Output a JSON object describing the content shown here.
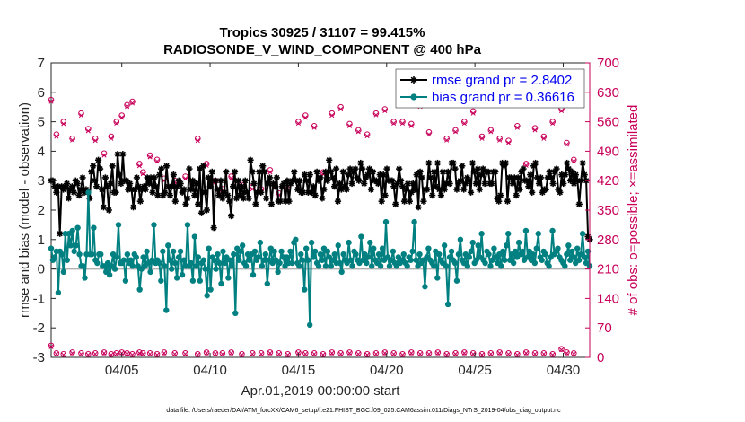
{
  "chart_data": {
    "type": "line",
    "title_line1": "Tropics 30925 / 31107 = 99.415%",
    "title_line2": "RADIOSONDE_V_WIND_COMPONENT @ 400 hPa",
    "ylabel_left": "rmse and bias (model - observation)",
    "ylabel_right": "# of obs: o=possible; ×=assimilated",
    "xlabel": "Apr.01,2019 00:00:00 start",
    "footnote": "data file: /Users/raeder/DAI/ATM_forcXX/CAM6_setup/f.e21.FHIST_BGC.f09_025.CAM6assim.011/Diags_NTrS_2019-04/obs_diag_output.nc",
    "x_range": [
      1,
      31.5
    ],
    "x_ticks": [
      5,
      10,
      15,
      20,
      25,
      30
    ],
    "x_tick_labels": [
      "04/05",
      "04/10",
      "04/15",
      "04/20",
      "04/25",
      "04/30"
    ],
    "ylim_left": [
      -3,
      7
    ],
    "y_ticks_left": [
      "-3",
      "-2",
      "-1",
      "0",
      "1",
      "2",
      "3",
      "4",
      "5",
      "6",
      "7"
    ],
    "ylim_right": [
      0,
      700
    ],
    "y_ticks_right": [
      "0",
      "70",
      "140",
      "210",
      "280",
      "350",
      "420",
      "490",
      "560",
      "630",
      "700"
    ],
    "zero_line": 0,
    "grid": false,
    "legend_position": "top-right",
    "series": [
      {
        "name": "rmse grand pr = 2.8402",
        "color": "#000000",
        "marker": "asterisk",
        "values": [
          3.0,
          3.0,
          2.8,
          2.6,
          2.8,
          1.2,
          2.8,
          2.7,
          2.8,
          2.9,
          2.4,
          2.7,
          2.8,
          2.6,
          3.0,
          2.9,
          2.5,
          2.7,
          3.1,
          2.6,
          2.7,
          2.6,
          2.4,
          3.3,
          3.5,
          3.0,
          2.8,
          3.7,
          3.4,
          2.7,
          2.1,
          3.1,
          2.8,
          2.0,
          2.9,
          3.5,
          2.6,
          2.6,
          3.9,
          3.2,
          2.9,
          3.9,
          3.0,
          3.0,
          2.7,
          2.9,
          2.7,
          2.1,
          2.7,
          3.1,
          2.8,
          2.3,
          2.7,
          2.8,
          2.7,
          3.1,
          2.9,
          3.1,
          2.6,
          3.1,
          2.8,
          2.5,
          3.2,
          3.4,
          2.5,
          2.6,
          3.5,
          2.8,
          2.5,
          2.8,
          3.2,
          2.3,
          2.8,
          3.0,
          2.9,
          2.6,
          2.7,
          2.2,
          2.4,
          3.4,
          2.7,
          3.0,
          2.5,
          2.9,
          2.2,
          3.4,
          1.9,
          3.5,
          2.6,
          2.0,
          3.1,
          2.8,
          3.3,
          1.4,
          3.0,
          2.7,
          2.5,
          3.0,
          2.4,
          2.6,
          3.3,
          2.5,
          2.3,
          1.8,
          2.8,
          3.3,
          2.4,
          3.0,
          2.5,
          2.8,
          2.4,
          3.0,
          2.6,
          2.4,
          3.7,
          3.3,
          2.9,
          2.2,
          2.6,
          3.3,
          2.6,
          3.5,
          3.3,
          2.4,
          2.9,
          3.1,
          2.2,
          2.9,
          2.8,
          3.1,
          2.3,
          2.3,
          2.8,
          2.9,
          2.3,
          3.0,
          2.3,
          2.9,
          3.0,
          3.3,
          3.0,
          2.7,
          3.0,
          2.6,
          2.6,
          3.2,
          3.0,
          2.6,
          3.2,
          2.6,
          2.8,
          2.5,
          3.3,
          3.0,
          3.1,
          2.4,
          2.7,
          3.3,
          3.0,
          3.7,
          3.3,
          3.1,
          2.8,
          3.4,
          2.3,
          2.9,
          2.7,
          3.3,
          2.8,
          2.7,
          3.2,
          3.4,
          2.9,
          3.3,
          3.4,
          3.1,
          3.0,
          3.6,
          3.4,
          2.9,
          3.1,
          3.2,
          3.4,
          2.7,
          3.3,
          3.0,
          3.0,
          2.9,
          3.2,
          2.3,
          3.2,
          2.5,
          3.4,
          3.0,
          3.0,
          3.0,
          2.8,
          2.2,
          2.9,
          3.4,
          3.0,
          2.8,
          2.3,
          2.7,
          2.9,
          2.3,
          2.6,
          2.9,
          2.7,
          3.2,
          2.1,
          3.3,
          3.1,
          2.3,
          2.7,
          2.7,
          3.6,
          3.1,
          2.5,
          3.3,
          2.8,
          3.6,
          2.7,
          2.5,
          3.3,
          2.7,
          2.9,
          3.3,
          2.9,
          3.6,
          3.6,
          3.4,
          2.7,
          2.9,
          3.0,
          3.5,
          2.7,
          2.9,
          3.1,
          3.0,
          2.6,
          3.6,
          3.3,
          2.9,
          3.4,
          2.7,
          3.2,
          3.4,
          2.9,
          3.3,
          3.3,
          2.9,
          2.9,
          3.3,
          3.3,
          2.4,
          2.3,
          2.5,
          3.6,
          3.5,
          3.6,
          2.3,
          3.1,
          3.1,
          2.9,
          3.1,
          2.5,
          3.1,
          2.7,
          3.3,
          3.4,
          3.0,
          3.0,
          2.8,
          3.2,
          2.6,
          3.5,
          3.6,
          3.1,
          2.9,
          3.1,
          2.6,
          2.7,
          2.7,
          3.1,
          3.3,
          3.1,
          2.9,
          3.3,
          3.4,
          2.7,
          2.6,
          3.2,
          2.9,
          3.2,
          3.6,
          3.4,
          3.0,
          3.3,
          2.9,
          3.2,
          3.0,
          2.2,
          3.0,
          3.6,
          3.2,
          3.0,
          1.1,
          1.0
        ]
      },
      {
        "name": "bias grand pr = 0.36616",
        "color": "#008080",
        "marker": "circle",
        "values": [
          0.7,
          0.3,
          0.4,
          0.6,
          -0.8,
          0.6,
          0.5,
          -0.1,
          1.2,
          0.3,
          1.2,
          0.8,
          1.3,
          0.6,
          0.8,
          1.4,
          0.5,
          0.1,
          0.1,
          -0.3,
          0.5,
          2.6,
          0.5,
          0.5,
          1.4,
          0.3,
          0.2,
          0.5,
          0.5,
          0.1,
          0.1,
          -0.1,
          0.2,
          -0.2,
          0.1,
          0.5,
          0.0,
          0.4,
          1.5,
          0.2,
          0.2,
          0.3,
          -0.4,
          0.5,
          0.2,
          0.3,
          0.1,
          0.5,
          0.4,
          0.1,
          -0.7,
          0.0,
          0.4,
          0.1,
          0.6,
          0.2,
          -0.1,
          0.3,
          1.5,
          0.2,
          0.3,
          0.2,
          -0.4,
          0.6,
          0.1,
          -1.4,
          0.8,
          0.3,
          0.0,
          0.6,
          0.2,
          -0.3,
          0.4,
          0.6,
          -0.2,
          0.3,
          0.1,
          1.5,
          0.1,
          0.2,
          -0.4,
          1.1,
          0.1,
          0.4,
          -0.4,
          0.2,
          0.3,
          0.0,
          -0.9,
          0.7,
          -0.7,
          0.4,
          0.3,
          0.0,
          0.5,
          0.2,
          -0.5,
          0.6,
          0.2,
          0.4,
          -0.3,
          0.3,
          0.1,
          0.5,
          -1.5,
          0.7,
          0.3,
          0.6,
          0.8,
          0.2,
          0.1,
          0.5,
          0.3,
          0.5,
          -0.2,
          0.6,
          0.3,
          0.4,
          0.9,
          0.1,
          0.3,
          0.5,
          -0.5,
          0.3,
          0.7,
          0.2,
          0.6,
          0.3,
          -0.1,
          0.2,
          0.6,
          0.4,
          0.1,
          0.4,
          0.2,
          0.6,
          0.2,
          0.9,
          1.0,
          0.2,
          0.1,
          0.5,
          0.3,
          -0.7,
          0.7,
          0.3,
          -1.9,
          0.9,
          0.4,
          0.6,
          0.2,
          0.1,
          0.5,
          0.3,
          0.7,
          0.1,
          0.6,
          0.4,
          0.1,
          0.3,
          0.5,
          0.2,
          0.8,
          0.2,
          -0.1,
          0.5,
          0.3,
          0.2,
          0.9,
          0.3,
          0.1,
          0.6,
          0.5,
          0.3,
          0.2,
          1.1,
          0.3,
          0.5,
          0.2,
          0.4,
          0.9,
          0.1,
          0.7,
          0.3,
          0.2,
          0.5,
          0.1,
          0.7,
          0.3,
          1.6,
          0.4,
          0.1,
          0.3,
          0.6,
          0.2,
          0.1,
          0.4,
          0.2,
          0.3,
          0.5,
          0.2,
          0.1,
          0.4,
          0.3,
          0.6,
          1.6,
          0.3,
          0.1,
          0.5,
          0.2,
          0.3,
          -0.6,
          0.4,
          0.7,
          0.3,
          0.2,
          0.1,
          0.6,
          -0.3,
          0.5,
          0.3,
          0.2,
          0.8,
          0.1,
          -1.2,
          0.4,
          0.6,
          0.3,
          0.2,
          -0.4,
          0.5,
          1.0,
          0.3,
          0.2,
          0.5,
          0.1,
          0.4,
          0.6,
          0.9,
          0.2,
          0.3,
          0.8,
          0.4,
          1.2,
          0.3,
          0.2,
          0.6,
          0.5,
          0.1,
          0.3,
          0.7,
          0.4,
          0.2,
          0.5,
          0.1,
          0.6,
          0.3,
          0.8,
          1.2,
          0.3,
          0.5,
          0.2,
          0.6,
          0.4,
          0.9,
          0.5,
          0.6,
          0.3,
          1.3,
          0.4,
          0.6,
          0.3,
          0.5,
          0.2,
          0.7,
          1.2,
          0.4,
          0.3,
          0.6,
          0.5,
          0.2,
          0.1,
          0.4,
          1.3,
          0.5,
          0.6,
          0.7,
          0.4,
          0.3,
          0.2,
          0.1,
          0.5,
          0.8,
          0.3,
          0.6,
          0.4,
          0.2,
          0.7,
          0.3,
          0.5,
          1.2,
          0.4,
          0.2,
          0.6,
          0.1
        ]
      }
    ],
    "obs_possible_label": "o=possible",
    "obs_assimilated_label": "×=assimilated",
    "obs_color": "#c8005a",
    "obs_days": [
      1,
      1.3,
      1.7,
      2.2,
      2.7,
      3.1,
      3.5,
      4.0,
      4.4,
      4.7,
      5.0,
      5.3,
      5.6,
      6.0,
      6.2,
      6.6,
      7.0,
      7.4,
      8.0,
      8.6,
      9.3,
      9.8,
      10.3,
      10.7,
      11.2,
      11.8,
      12.4,
      12.9,
      13.4,
      13.9,
      14.4,
      15.0,
      15.4,
      15.9,
      16.4,
      16.9,
      17.4,
      17.9,
      18.4,
      18.9,
      19.4,
      19.9,
      20.4,
      20.9,
      21.4,
      21.9,
      22.4,
      22.9,
      23.4,
      23.9,
      24.4,
      24.9,
      25.4,
      25.9,
      26.4,
      26.9,
      27.4,
      27.9,
      28.4,
      28.9,
      29.4,
      29.9,
      30.2,
      30.6
    ],
    "obs_possible": [
      612,
      530,
      560,
      520,
      580,
      543,
      520,
      485,
      525,
      560,
      575,
      600,
      608,
      460,
      440,
      480,
      470,
      425,
      420,
      430,
      520,
      460,
      420,
      400,
      430,
      410,
      405,
      400,
      445,
      390,
      400,
      560,
      575,
      550,
      440,
      580,
      595,
      555,
      540,
      530,
      580,
      590,
      560,
      560,
      555,
      600,
      535,
      610,
      520,
      540,
      560,
      585,
      525,
      540,
      520,
      515,
      550,
      460,
      545,
      525,
      560,
      590,
      510,
      470
    ],
    "obs_assimilated": [
      608,
      525,
      555,
      516,
      575,
      538,
      515,
      480,
      520,
      556,
      570,
      596,
      604,
      455,
      436,
      476,
      466,
      420,
      416,
      425,
      515,
      456,
      416,
      396,
      426,
      406,
      400,
      396,
      440,
      386,
      396,
      556,
      570,
      546,
      436,
      575,
      590,
      550,
      536,
      526,
      576,
      586,
      556,
      556,
      550,
      596,
      530,
      606,
      516,
      536,
      556,
      580,
      520,
      536,
      516,
      510,
      546,
      456,
      540,
      520,
      556,
      586,
      506,
      466
    ],
    "obs_low_possible": [
      28,
      10,
      8,
      12,
      10,
      8,
      10,
      12,
      8,
      10,
      12,
      10,
      8,
      12,
      10,
      10,
      8,
      12,
      10,
      10,
      8,
      12,
      10,
      10,
      12,
      8,
      10,
      10,
      12,
      10,
      8,
      12,
      10,
      10,
      8,
      12,
      10,
      12,
      10,
      8,
      10,
      12,
      10,
      8,
      12,
      10,
      10,
      12,
      8,
      10,
      12,
      10,
      8,
      10,
      12,
      10,
      8,
      12,
      10,
      10,
      8,
      20,
      12,
      10
    ],
    "obs_low_assimilated": [
      25,
      8,
      6,
      10,
      8,
      6,
      8,
      10,
      6,
      8,
      10,
      8,
      6,
      10,
      8,
      8,
      6,
      10,
      8,
      8,
      6,
      10,
      8,
      8,
      10,
      6,
      8,
      8,
      10,
      8,
      6,
      10,
      8,
      8,
      6,
      10,
      8,
      10,
      8,
      6,
      8,
      10,
      8,
      6,
      10,
      8,
      8,
      10,
      6,
      8,
      10,
      8,
      6,
      8,
      10,
      8,
      6,
      10,
      8,
      8,
      6,
      18,
      10,
      8
    ]
  }
}
